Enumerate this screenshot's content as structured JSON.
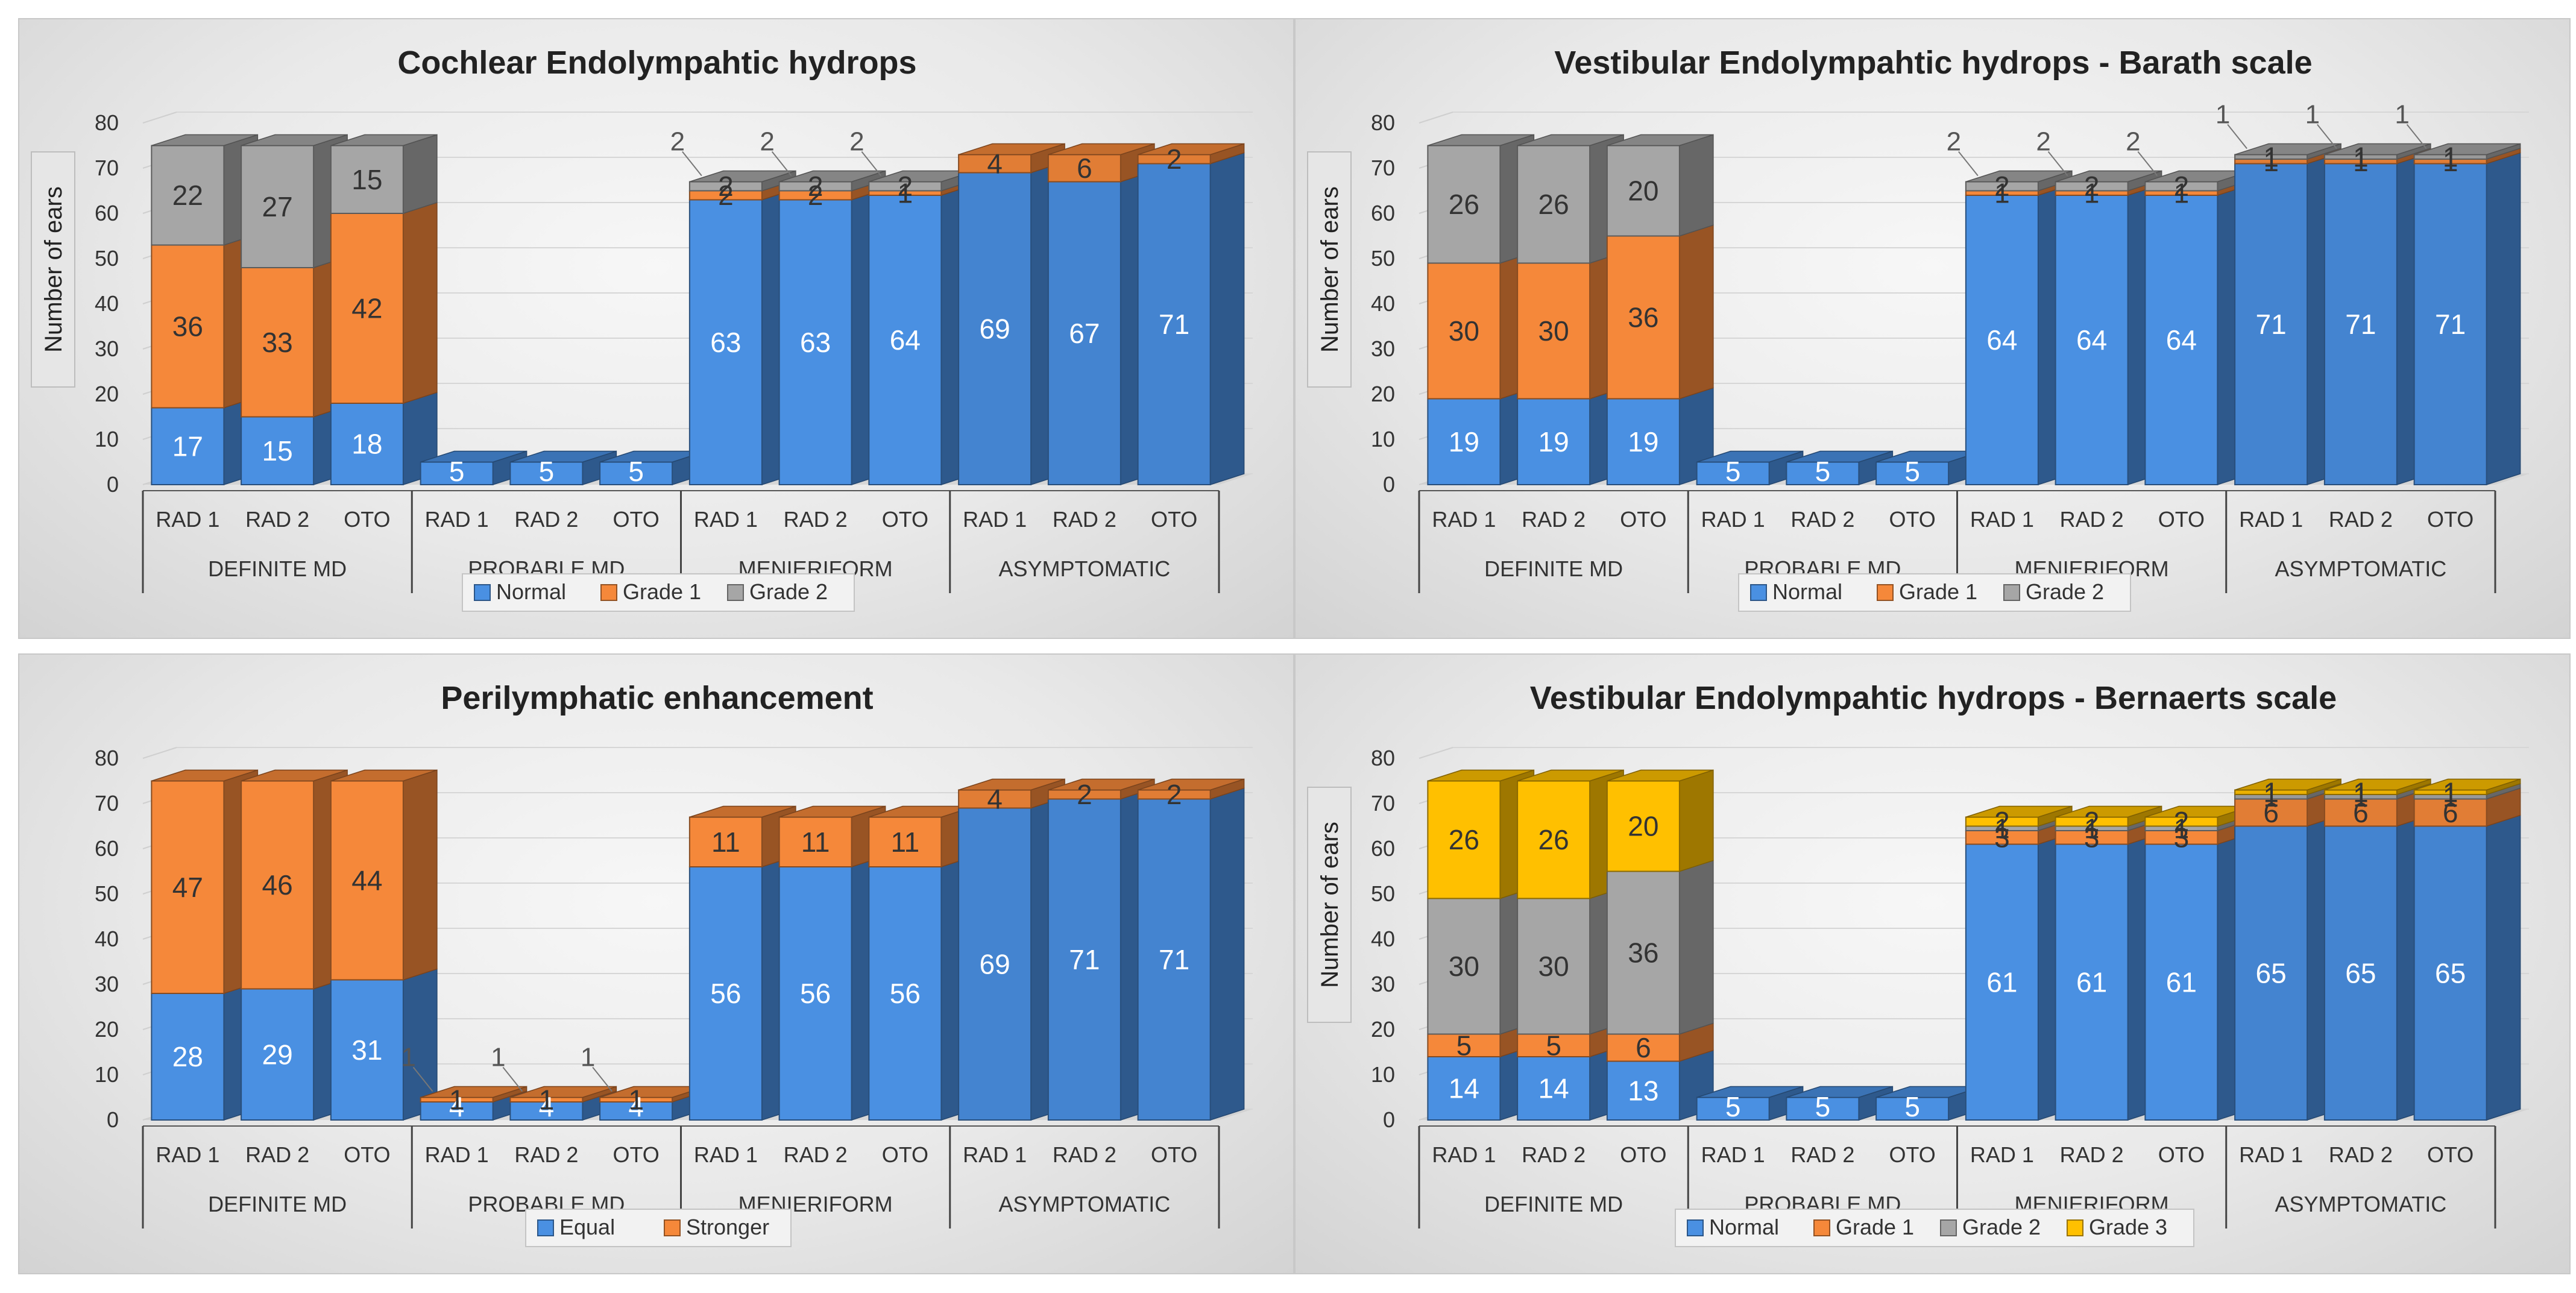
{
  "chart_data": [
    {
      "type": "bar",
      "stacked": true,
      "title": "Cochlear Endolympahtic hydrops",
      "ylabel": "Number of ears",
      "ylim": [
        0,
        80
      ],
      "yticks": [
        "0",
        "10",
        "20",
        "30",
        "40",
        "50",
        "60",
        "70",
        "80"
      ],
      "categories": [
        "RAD 1",
        "RAD 2",
        "OTO",
        "RAD 1",
        "RAD 2",
        "OTO",
        "RAD 1",
        "RAD 2",
        "OTO",
        "RAD 1",
        "RAD 2",
        "OTO"
      ],
      "groups": [
        "DEFINITE MD",
        "PROBABLE MD",
        "MENIERIFORM",
        "ASYMPTOMATIC"
      ],
      "series": [
        {
          "name": "Normal",
          "color": "#4a90e2",
          "values": [
            17,
            15,
            18,
            5,
            5,
            5,
            63,
            63,
            64,
            69,
            67,
            71
          ]
        },
        {
          "name": "Grade 1",
          "color": "#f5883a",
          "values": [
            36,
            33,
            42,
            0,
            0,
            0,
            2,
            2,
            1,
            4,
            6,
            2
          ]
        },
        {
          "name": "Grade 2",
          "color": "#a6a6a6",
          "values": [
            22,
            27,
            15,
            0,
            0,
            0,
            2,
            2,
            2,
            0,
            0,
            0
          ]
        }
      ],
      "labels": [
        [
          "17",
          "15",
          "18",
          "5",
          "5",
          "5",
          "63",
          "63",
          "64",
          "69",
          "67",
          "71"
        ],
        [
          "36",
          "33",
          "42",
          "",
          "",
          "",
          "2",
          "2",
          "1",
          "4",
          "6",
          "2"
        ],
        [
          "22",
          "27",
          "15",
          "",
          "",
          "",
          "2",
          "2",
          "2",
          "",
          "",
          ""
        ]
      ],
      "callouts": [
        "2",
        "2",
        "2"
      ],
      "legend": [
        "Normal",
        "Grade 1",
        "Grade 2"
      ]
    },
    {
      "type": "bar",
      "stacked": true,
      "title": "Vestibular Endolympahtic hydrops - Barath scale",
      "ylabel": "Number of ears",
      "ylim": [
        0,
        80
      ],
      "yticks": [
        "0",
        "10",
        "20",
        "30",
        "40",
        "50",
        "60",
        "70",
        "80"
      ],
      "categories": [
        "RAD 1",
        "RAD 2",
        "OTO",
        "RAD 1",
        "RAD 2",
        "OTO",
        "RAD 1",
        "RAD 2",
        "OTO",
        "RAD 1",
        "RAD 2",
        "OTO"
      ],
      "groups": [
        "DEFINITE MD",
        "PROBABLE MD",
        "MENIERIFORM",
        "ASYMPTOMATIC"
      ],
      "series": [
        {
          "name": "Normal",
          "color": "#4a90e2",
          "values": [
            19,
            19,
            19,
            5,
            5,
            5,
            64,
            64,
            64,
            71,
            71,
            71
          ]
        },
        {
          "name": "Grade 1",
          "color": "#f5883a",
          "values": [
            30,
            30,
            36,
            0,
            0,
            0,
            1,
            1,
            1,
            1,
            1,
            1
          ]
        },
        {
          "name": "Grade 2",
          "color": "#a6a6a6",
          "values": [
            26,
            26,
            20,
            0,
            0,
            0,
            2,
            2,
            2,
            1,
            1,
            1
          ]
        }
      ],
      "labels": [
        [
          "19",
          "19",
          "19",
          "5",
          "5",
          "5",
          "64",
          "64",
          "64",
          "71",
          "71",
          "71"
        ],
        [
          "30",
          "30",
          "36",
          "",
          "",
          "",
          "1",
          "1",
          "1",
          "1",
          "1",
          "1"
        ],
        [
          "26",
          "26",
          "20",
          "",
          "",
          "",
          "2",
          "2",
          "2",
          "1",
          "1",
          "1"
        ]
      ],
      "callouts": [
        "2",
        "2",
        "2",
        "1",
        "1",
        "1"
      ],
      "legend": [
        "Normal",
        "Grade 1",
        "Grade 2"
      ]
    },
    {
      "type": "bar",
      "stacked": true,
      "title": "Perilymphatic enhancement",
      "ylabel": "",
      "ylim": [
        0,
        80
      ],
      "yticks": [
        "0",
        "10",
        "20",
        "30",
        "40",
        "50",
        "60",
        "70",
        "80"
      ],
      "categories": [
        "RAD 1",
        "RAD 2",
        "OTO",
        "RAD 1",
        "RAD 2",
        "OTO",
        "RAD 1",
        "RAD 2",
        "OTO",
        "RAD 1",
        "RAD 2",
        "OTO"
      ],
      "groups": [
        "DEFINITE MD",
        "PROBABLE MD",
        "MENIERIFORM",
        "ASYMPTOMATIC"
      ],
      "series": [
        {
          "name": "Equal",
          "color": "#4a90e2",
          "values": [
            28,
            29,
            31,
            4,
            4,
            4,
            56,
            56,
            56,
            69,
            71,
            71
          ]
        },
        {
          "name": "Stronger",
          "color": "#f5883a",
          "values": [
            47,
            46,
            44,
            1,
            1,
            1,
            11,
            11,
            11,
            4,
            2,
            2
          ]
        }
      ],
      "labels": [
        [
          "28",
          "29",
          "31",
          "4",
          "4",
          "4",
          "56",
          "56",
          "56",
          "69",
          "71",
          "71"
        ],
        [
          "47",
          "46",
          "44",
          "1",
          "1",
          "1",
          "11",
          "11",
          "11",
          "4",
          "2",
          "2"
        ]
      ],
      "callouts": [
        "1",
        "1",
        "1"
      ],
      "legend": [
        "Equal",
        "Stronger"
      ]
    },
    {
      "type": "bar",
      "stacked": true,
      "title": "Vestibular Endolympahtic hydrops - Bernaerts scale",
      "ylabel": "Number of ears",
      "ylim": [
        0,
        80
      ],
      "yticks": [
        "0",
        "10",
        "20",
        "30",
        "40",
        "50",
        "60",
        "70",
        "80"
      ],
      "categories": [
        "RAD 1",
        "RAD 2",
        "OTO",
        "RAD 1",
        "RAD 2",
        "OTO",
        "RAD 1",
        "RAD 2",
        "OTO",
        "RAD 1",
        "RAD 2",
        "OTO"
      ],
      "groups": [
        "DEFINITE MD",
        "PROBABLE MD",
        "MENIERIFORM",
        "ASYMPTOMATIC"
      ],
      "series": [
        {
          "name": "Normal",
          "color": "#4a90e2",
          "values": [
            14,
            14,
            13,
            5,
            5,
            5,
            61,
            61,
            61,
            65,
            65,
            65
          ]
        },
        {
          "name": "Grade 1",
          "color": "#f5883a",
          "values": [
            5,
            5,
            6,
            0,
            0,
            0,
            3,
            3,
            3,
            6,
            6,
            6
          ]
        },
        {
          "name": "Grade 2",
          "color": "#a6a6a6",
          "values": [
            30,
            30,
            36,
            0,
            0,
            0,
            1,
            1,
            1,
            1,
            1,
            1
          ]
        },
        {
          "name": "Grade 3",
          "color": "#ffc000",
          "values": [
            26,
            26,
            20,
            0,
            0,
            0,
            2,
            2,
            2,
            1,
            1,
            1
          ]
        }
      ],
      "labels": [
        [
          "14",
          "14",
          "13",
          "5",
          "5",
          "5",
          "61",
          "61",
          "61",
          "65",
          "65",
          "65"
        ],
        [
          "5",
          "5",
          "6",
          "",
          "",
          "",
          "3",
          "3",
          "3",
          "6",
          "6",
          "6"
        ],
        [
          "30",
          "30",
          "36",
          "",
          "",
          "",
          "1",
          "1",
          "1",
          "1",
          "1",
          "1"
        ],
        [
          "26",
          "26",
          "20",
          "",
          "",
          "",
          "2",
          "2",
          "2",
          "1",
          "1",
          "1"
        ]
      ],
      "legend": [
        "Normal",
        "Grade 1",
        "Grade 2",
        "Grade 3"
      ]
    }
  ]
}
